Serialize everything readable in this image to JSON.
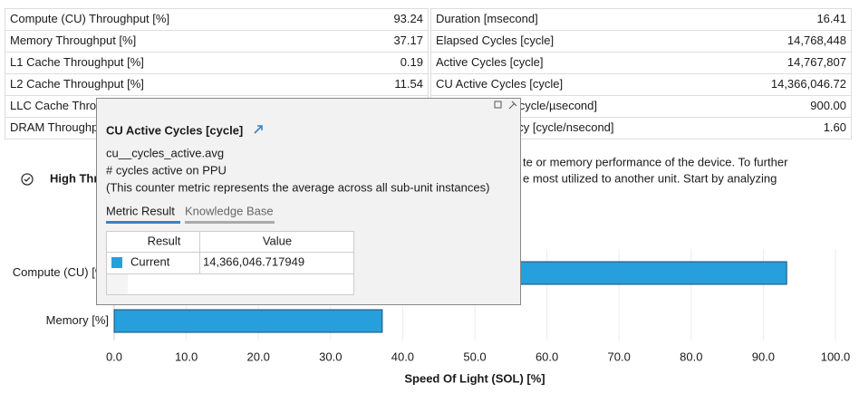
{
  "metrics_table": {
    "rows": [
      [
        "Compute (CU) Throughput [%]",
        "93.24",
        "Duration [msecond]",
        "16.41"
      ],
      [
        "Memory Throughput [%]",
        "37.17",
        "Elapsed Cycles [cycle]",
        "14,768,448"
      ],
      [
        "L1 Cache Throughput [%]",
        "0.19",
        "Active Cycles [cycle]",
        "14,767,807"
      ],
      [
        "L2 Cache Throughput [%]",
        "11.54",
        "CU Active Cycles [cycle]",
        "14,366,046.72"
      ],
      [
        "LLC Cache Throughput [%]",
        "",
        "SM Frequency [cycle/µsecond]",
        "900.00"
      ],
      [
        "DRAM Throughput [%]",
        "",
        "DRAM Frequency [cycle/nsecond]",
        "1.60"
      ]
    ]
  },
  "section": {
    "title": "High Throughput",
    "lines": [
      "te or memory performance of the device. To further",
      "e most utilized to another unit. Start by analyzing"
    ]
  },
  "tooltip": {
    "title": "CU Active Cycles [cycle]",
    "lines": [
      "cu__cycles_active.avg",
      "# cycles active on PPU",
      "(This counter metric represents the average across all sub-unit instances)"
    ],
    "tabs": [
      "Metric Result",
      "Knowledge Base"
    ],
    "table": {
      "header": [
        "Result",
        "Value"
      ],
      "rows": [
        [
          "Current",
          "14,366,046.717949"
        ]
      ]
    }
  },
  "chart_data": {
    "type": "bar",
    "orientation": "horizontal",
    "categories": [
      "Compute (CU) [%]",
      "Memory [%]"
    ],
    "values": [
      93.24,
      37.17
    ],
    "color": "#279fdc",
    "xlim": [
      0,
      100
    ],
    "xticks": [
      {
        "value": 0,
        "label": "0.0"
      },
      {
        "value": 10,
        "label": "10.0"
      },
      {
        "value": 20,
        "label": "20.0"
      },
      {
        "value": 30,
        "label": "30.0"
      },
      {
        "value": 40,
        "label": "40.0"
      },
      {
        "value": 50,
        "label": "50.0"
      },
      {
        "value": 60,
        "label": "60.0"
      },
      {
        "value": 70,
        "label": "70.0"
      },
      {
        "value": 80,
        "label": "80.0"
      },
      {
        "value": 90,
        "label": "90.0"
      },
      {
        "value": 100,
        "label": "100.0"
      }
    ],
    "xlabel": "Speed Of Light (SOL) [%]",
    "grid": true
  }
}
